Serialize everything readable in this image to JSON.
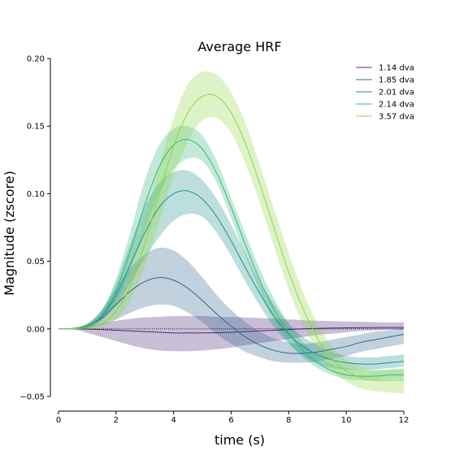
{
  "chart_data": {
    "type": "line",
    "title": "Average HRF",
    "xlabel": "time (s)",
    "ylabel": "Magnitude (zscore)",
    "xlim": [
      0,
      12
    ],
    "ylim": [
      -0.05,
      0.2
    ],
    "xticks": [
      0,
      2,
      4,
      6,
      8,
      10,
      12
    ],
    "yticks": [
      -0.05,
      0.0,
      0.05,
      0.1,
      0.15,
      0.2
    ],
    "ytick_labels": [
      "−0.05",
      "0.00",
      "0.05",
      "0.10",
      "0.15",
      "0.20"
    ],
    "grid": false,
    "legend_position": "top-right",
    "shaded_band": "confidence interval around each mean curve",
    "baseline": {
      "y": 0,
      "style": "dotted",
      "color": "#000000"
    },
    "x": [
      0,
      0.5,
      1,
      1.5,
      2,
      2.5,
      3,
      3.5,
      4,
      4.5,
      5,
      5.5,
      6,
      6.5,
      7,
      7.5,
      8,
      8.5,
      9,
      9.5,
      10,
      10.5,
      11,
      11.5,
      12
    ],
    "series": [
      {
        "name": "1.14 dva",
        "color": "#482878",
        "values": [
          0,
          0,
          -0.0002,
          -0.0005,
          -0.001,
          -0.0015,
          -0.002,
          -0.0025,
          -0.003,
          -0.003,
          -0.003,
          -0.0028,
          -0.0025,
          -0.002,
          -0.0015,
          -0.001,
          -0.0005,
          0,
          0.0003,
          0.0006,
          0.0008,
          0.0009,
          0.001,
          0.001,
          0.001
        ],
        "lower": [
          0,
          0,
          -0.003,
          -0.006,
          -0.009,
          -0.012,
          -0.0145,
          -0.016,
          -0.0165,
          -0.0165,
          -0.016,
          -0.015,
          -0.0138,
          -0.012,
          -0.0105,
          -0.009,
          -0.0075,
          -0.006,
          -0.0045,
          -0.0035,
          -0.0025,
          -0.0015,
          -0.001,
          -0.0005,
          -0.0005
        ],
        "upper": [
          0,
          0,
          0.002,
          0.004,
          0.006,
          0.0075,
          0.0085,
          0.009,
          0.0095,
          0.0095,
          0.0095,
          0.009,
          0.0088,
          0.0085,
          0.008,
          0.0075,
          0.007,
          0.0065,
          0.006,
          0.0058,
          0.0055,
          0.0052,
          0.005,
          0.0048,
          0.0048
        ]
      },
      {
        "name": "1.85 dva",
        "color": "#31688e",
        "values": [
          0,
          0.0003,
          0.002,
          0.008,
          0.018,
          0.028,
          0.035,
          0.038,
          0.036,
          0.03,
          0.021,
          0.011,
          0.002,
          -0.006,
          -0.012,
          -0.016,
          -0.018,
          -0.018,
          -0.017,
          -0.015,
          -0.013,
          -0.01,
          -0.008,
          -0.006,
          -0.004
        ],
        "lower": [
          0,
          -0.0002,
          0.0005,
          0.003,
          0.007,
          0.012,
          0.016,
          0.018,
          0.017,
          0.012,
          0.005,
          -0.004,
          -0.011,
          -0.017,
          -0.021,
          -0.024,
          -0.025,
          -0.025,
          -0.024,
          -0.022,
          -0.02,
          -0.017,
          -0.015,
          -0.013,
          -0.011
        ],
        "upper": [
          0,
          0.0008,
          0.004,
          0.014,
          0.03,
          0.045,
          0.055,
          0.06,
          0.058,
          0.05,
          0.038,
          0.025,
          0.014,
          0.005,
          -0.002,
          -0.007,
          -0.01,
          -0.011,
          -0.01,
          -0.008,
          -0.006,
          -0.004,
          -0.002,
          -0.001,
          0.001
        ]
      },
      {
        "name": "2.01 dva",
        "color": "#21918c",
        "values": [
          0,
          0.0002,
          0.002,
          0.009,
          0.025,
          0.048,
          0.071,
          0.09,
          0.1,
          0.102,
          0.096,
          0.083,
          0.065,
          0.045,
          0.026,
          0.009,
          -0.004,
          -0.013,
          -0.019,
          -0.023,
          -0.025,
          -0.026,
          -0.026,
          -0.025,
          -0.024
        ],
        "lower": [
          0,
          -0.0002,
          0.0008,
          0.006,
          0.017,
          0.034,
          0.052,
          0.068,
          0.08,
          0.085,
          0.083,
          0.071,
          0.054,
          0.035,
          0.017,
          0.001,
          -0.011,
          -0.02,
          -0.026,
          -0.029,
          -0.03,
          -0.03,
          -0.03,
          -0.029,
          -0.028
        ],
        "upper": [
          0,
          0.0006,
          0.0035,
          0.013,
          0.034,
          0.063,
          0.09,
          0.108,
          0.116,
          0.117,
          0.11,
          0.096,
          0.077,
          0.056,
          0.035,
          0.018,
          0.004,
          -0.006,
          -0.012,
          -0.017,
          -0.02,
          -0.021,
          -0.021,
          -0.02,
          -0.019
        ]
      },
      {
        "name": "2.14 dva",
        "color": "#35b779",
        "values": [
          0,
          0.0002,
          0.0025,
          0.01,
          0.028,
          0.058,
          0.092,
          0.12,
          0.136,
          0.14,
          0.133,
          0.115,
          0.09,
          0.062,
          0.036,
          0.014,
          -0.003,
          -0.016,
          -0.025,
          -0.031,
          -0.034,
          -0.035,
          -0.035,
          -0.034,
          -0.034
        ],
        "lower": [
          0,
          -0.0002,
          0.0012,
          0.007,
          0.02,
          0.044,
          0.073,
          0.1,
          0.118,
          0.126,
          0.124,
          0.108,
          0.082,
          0.054,
          0.028,
          0.006,
          -0.01,
          -0.021,
          -0.029,
          -0.034,
          -0.037,
          -0.038,
          -0.038,
          -0.037,
          -0.037
        ],
        "upper": [
          0,
          0.0006,
          0.004,
          0.014,
          0.037,
          0.072,
          0.11,
          0.136,
          0.148,
          0.15,
          0.143,
          0.124,
          0.097,
          0.07,
          0.044,
          0.022,
          0.004,
          -0.01,
          -0.02,
          -0.026,
          -0.029,
          -0.03,
          -0.031,
          -0.03,
          -0.03
        ]
      },
      {
        "name": "3.57 dva",
        "color": "#8fd744",
        "values": [
          0,
          0.0001,
          0.0008,
          0.004,
          0.013,
          0.032,
          0.063,
          0.1,
          0.135,
          0.16,
          0.172,
          0.172,
          0.16,
          0.137,
          0.107,
          0.074,
          0.042,
          0.015,
          -0.007,
          -0.022,
          -0.031,
          -0.036,
          -0.038,
          -0.038,
          -0.038
        ],
        "lower": [
          0,
          -0.0003,
          -0.0005,
          0.0015,
          0.007,
          0.021,
          0.046,
          0.079,
          0.113,
          0.139,
          0.154,
          0.156,
          0.145,
          0.122,
          0.093,
          0.06,
          0.029,
          0.003,
          -0.017,
          -0.031,
          -0.039,
          -0.044,
          -0.046,
          -0.047,
          -0.048
        ],
        "upper": [
          0,
          0.0005,
          0.002,
          0.0065,
          0.019,
          0.043,
          0.08,
          0.12,
          0.156,
          0.181,
          0.19,
          0.188,
          0.175,
          0.152,
          0.121,
          0.088,
          0.056,
          0.027,
          0.004,
          -0.013,
          -0.023,
          -0.028,
          -0.03,
          -0.03,
          -0.029
        ]
      }
    ]
  }
}
